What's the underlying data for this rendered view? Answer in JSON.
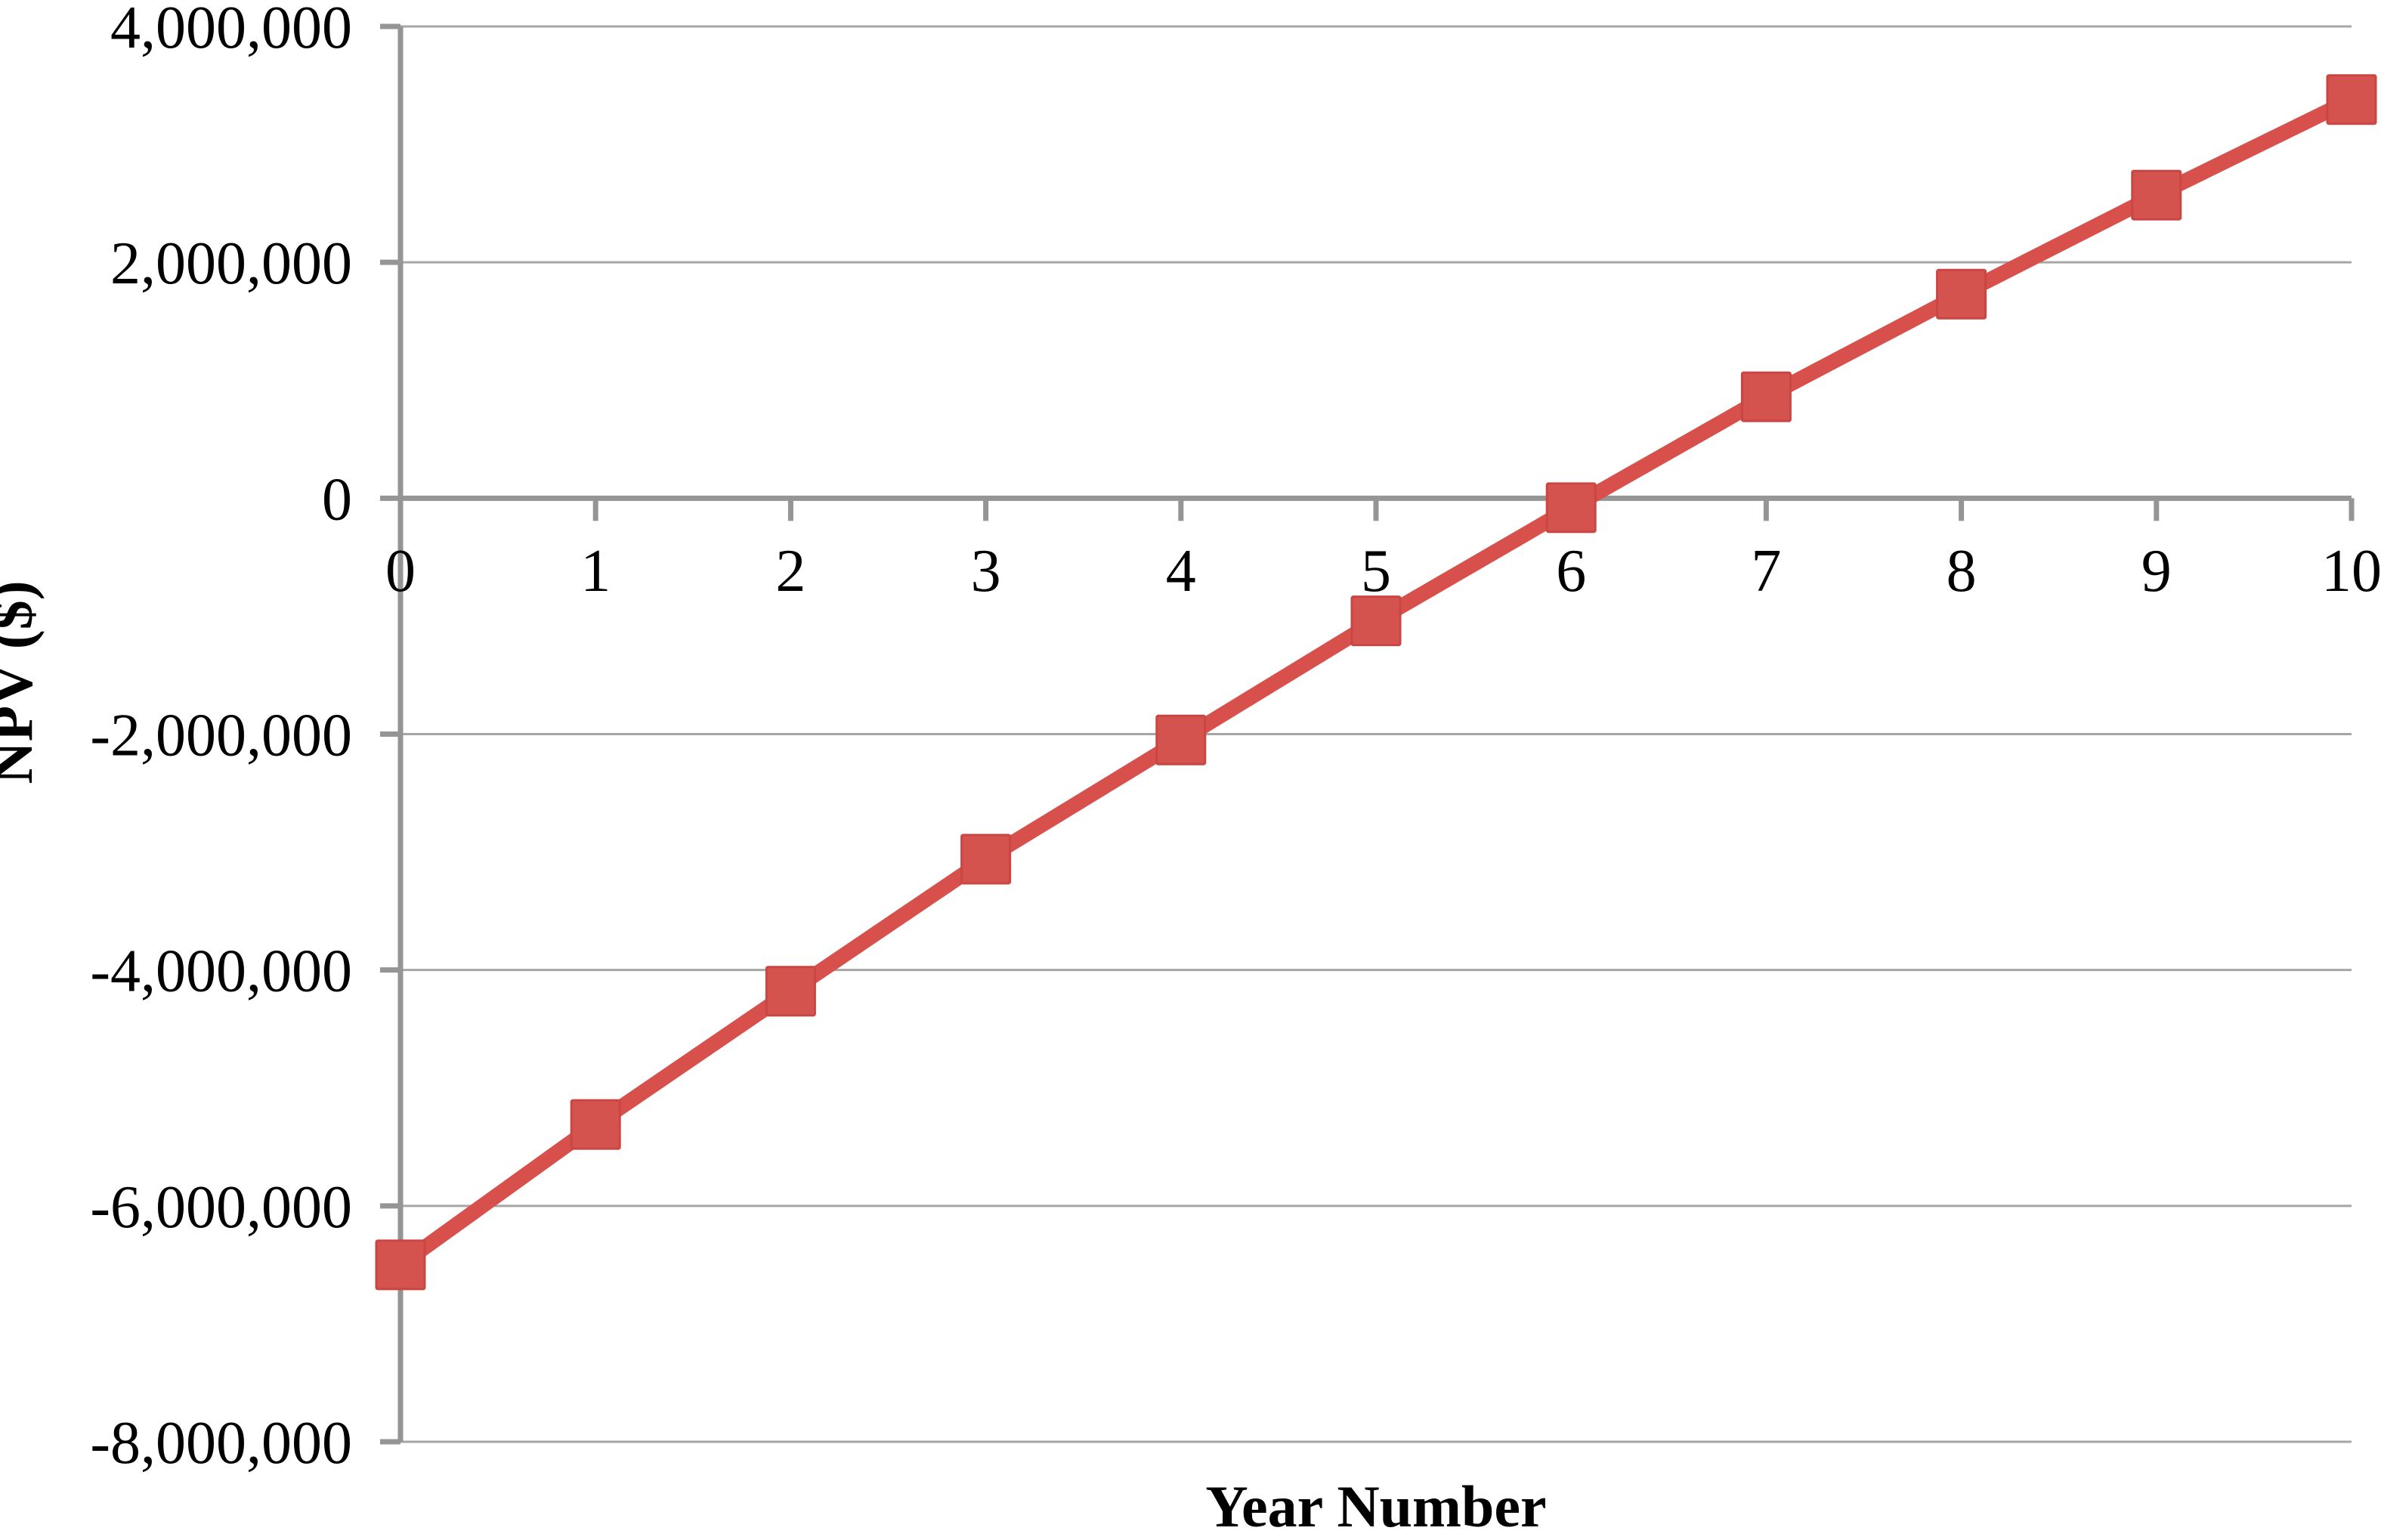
{
  "chart_data": {
    "type": "line",
    "title": "",
    "xlabel": "Year Number",
    "ylabel": "NPV ($)",
    "x": [
      0,
      1,
      2,
      3,
      4,
      5,
      6,
      7,
      8,
      9,
      10
    ],
    "series": [
      {
        "name": "NPV",
        "values": [
          -6500000,
          -5310000,
          -4180000,
          -3060000,
          -2050000,
          -1040000,
          -80000,
          860000,
          1730000,
          2570000,
          3380000
        ]
      }
    ],
    "ylim": [
      -8000000,
      4000000
    ],
    "ytick_step": 2000000,
    "y_tick_labels": [
      "4,000,000",
      "2,000,000",
      "0",
      "-2,000,000",
      "-4,000,000",
      "-6,000,000",
      "-8,000,000"
    ],
    "x_tick_labels": [
      "0",
      "1",
      "2",
      "3",
      "4",
      "5",
      "6",
      "7",
      "8",
      "9",
      "10"
    ],
    "grid": "horizontal",
    "legend": "none",
    "marker": "square"
  },
  "colors": {
    "line": "#d8504b",
    "marker_fill": "#d5534f",
    "marker_border": "#ca4642",
    "gridline": "#a6a6a6",
    "axis": "#959595",
    "text": "#000000",
    "background": "#ffffff"
  }
}
